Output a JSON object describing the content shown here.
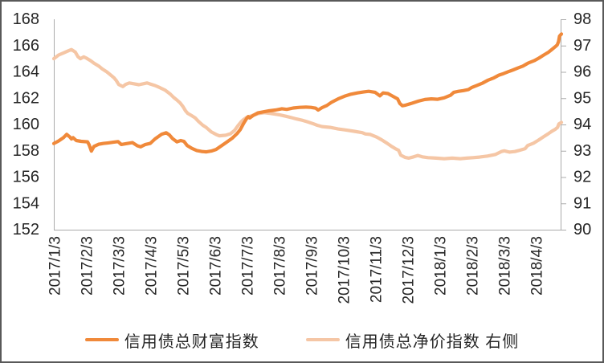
{
  "figure": {
    "background": "#ffffff",
    "border_color": "#595959",
    "axis_line_color": "#ABABAB",
    "tick_text_color": "#262626"
  },
  "legend": {
    "items": [
      {
        "label": "信用债总财富指数",
        "color": "#F0893A"
      },
      {
        "label": "信用债总净价指数 右侧",
        "color": "#F5C6A5"
      }
    ]
  },
  "chart_data": {
    "type": "line",
    "title": "",
    "xlabel": "",
    "ylabel_left": "",
    "ylabel_right": "",
    "grid": false,
    "legend_position": "bottom",
    "x_tick_labels": [
      "2017/1/3",
      "2017/2/3",
      "2017/3/3",
      "2017/4/3",
      "2017/5/3",
      "2017/6/3",
      "2017/7/3",
      "2017/8/3",
      "2017/9/3",
      "2017/10/3",
      "2017/11/3",
      "2017/12/3",
      "2018/1/3",
      "2018/2/3",
      "2018/3/3",
      "2018/4/3"
    ],
    "left_axis": {
      "min": 152,
      "max": 168,
      "step": 2,
      "ticks": [
        168,
        166,
        164,
        162,
        160,
        158,
        156,
        154,
        152
      ]
    },
    "right_axis": {
      "min": 90,
      "max": 98,
      "step": 1,
      "ticks": [
        98,
        97,
        96,
        95,
        94,
        93,
        92,
        91,
        90
      ]
    },
    "x_unit": "months since 2017/1/3 (tick index)",
    "series": [
      {
        "name": "信用债总财富指数",
        "axis": "left",
        "color": "#F0893A",
        "points": [
          [
            -0.05,
            158.55
          ],
          [
            0.1,
            158.75
          ],
          [
            0.25,
            159.0
          ],
          [
            0.35,
            159.25
          ],
          [
            0.45,
            159.05
          ],
          [
            0.5,
            158.9
          ],
          [
            0.55,
            159.0
          ],
          [
            0.65,
            158.78
          ],
          [
            0.8,
            158.72
          ],
          [
            1.0,
            158.68
          ],
          [
            1.05,
            158.45
          ],
          [
            1.12,
            157.98
          ],
          [
            1.2,
            158.33
          ],
          [
            1.35,
            158.5
          ],
          [
            1.5,
            158.56
          ],
          [
            1.65,
            158.6
          ],
          [
            1.8,
            158.65
          ],
          [
            1.95,
            158.7
          ],
          [
            2.05,
            158.48
          ],
          [
            2.25,
            158.56
          ],
          [
            2.4,
            158.62
          ],
          [
            2.55,
            158.38
          ],
          [
            2.65,
            158.3
          ],
          [
            2.8,
            158.48
          ],
          [
            2.95,
            158.56
          ],
          [
            3.1,
            158.9
          ],
          [
            3.3,
            159.25
          ],
          [
            3.45,
            159.37
          ],
          [
            3.55,
            159.2
          ],
          [
            3.65,
            158.92
          ],
          [
            3.78,
            158.68
          ],
          [
            3.9,
            158.78
          ],
          [
            4.0,
            158.72
          ],
          [
            4.1,
            158.4
          ],
          [
            4.25,
            158.18
          ],
          [
            4.4,
            158.02
          ],
          [
            4.55,
            157.95
          ],
          [
            4.7,
            157.92
          ],
          [
            4.85,
            157.98
          ],
          [
            5.0,
            158.1
          ],
          [
            5.15,
            158.35
          ],
          [
            5.3,
            158.6
          ],
          [
            5.5,
            158.95
          ],
          [
            5.65,
            159.3
          ],
          [
            5.75,
            159.6
          ],
          [
            5.85,
            160.05
          ],
          [
            5.95,
            160.45
          ],
          [
            6.0,
            160.6
          ],
          [
            6.05,
            160.5
          ],
          [
            6.15,
            160.68
          ],
          [
            6.3,
            160.88
          ],
          [
            6.5,
            160.97
          ],
          [
            6.65,
            161.04
          ],
          [
            6.85,
            161.1
          ],
          [
            7.05,
            161.2
          ],
          [
            7.2,
            161.15
          ],
          [
            7.4,
            161.25
          ],
          [
            7.6,
            161.3
          ],
          [
            7.8,
            161.32
          ],
          [
            7.95,
            161.3
          ],
          [
            8.1,
            161.24
          ],
          [
            8.18,
            161.1
          ],
          [
            8.3,
            161.28
          ],
          [
            8.45,
            161.45
          ],
          [
            8.6,
            161.7
          ],
          [
            8.8,
            161.95
          ],
          [
            9.0,
            162.15
          ],
          [
            9.2,
            162.3
          ],
          [
            9.4,
            162.4
          ],
          [
            9.6,
            162.48
          ],
          [
            9.75,
            162.52
          ],
          [
            9.95,
            162.45
          ],
          [
            10.1,
            162.18
          ],
          [
            10.2,
            162.4
          ],
          [
            10.35,
            162.35
          ],
          [
            10.5,
            162.15
          ],
          [
            10.65,
            161.95
          ],
          [
            10.72,
            161.6
          ],
          [
            10.8,
            161.42
          ],
          [
            10.9,
            161.47
          ],
          [
            11.1,
            161.62
          ],
          [
            11.3,
            161.78
          ],
          [
            11.5,
            161.9
          ],
          [
            11.7,
            161.95
          ],
          [
            11.9,
            161.92
          ],
          [
            12.1,
            162.03
          ],
          [
            12.3,
            162.22
          ],
          [
            12.4,
            162.45
          ],
          [
            12.55,
            162.52
          ],
          [
            12.7,
            162.58
          ],
          [
            12.85,
            162.65
          ],
          [
            12.95,
            162.8
          ],
          [
            13.1,
            162.95
          ],
          [
            13.3,
            163.15
          ],
          [
            13.45,
            163.35
          ],
          [
            13.65,
            163.55
          ],
          [
            13.8,
            163.75
          ],
          [
            13.95,
            163.87
          ],
          [
            14.1,
            164.02
          ],
          [
            14.25,
            164.15
          ],
          [
            14.4,
            164.3
          ],
          [
            14.55,
            164.44
          ],
          [
            14.65,
            164.58
          ],
          [
            14.72,
            164.68
          ],
          [
            14.9,
            164.85
          ],
          [
            15.05,
            165.05
          ],
          [
            15.2,
            165.28
          ],
          [
            15.35,
            165.5
          ],
          [
            15.45,
            165.7
          ],
          [
            15.55,
            165.9
          ],
          [
            15.62,
            166.05
          ],
          [
            15.66,
            166.3
          ],
          [
            15.69,
            166.72
          ],
          [
            15.75,
            166.88
          ]
        ]
      },
      {
        "name": "信用债总净价指数 右侧",
        "axis": "right",
        "color": "#F5C6A5",
        "points": [
          [
            -0.05,
            96.5
          ],
          [
            0.1,
            96.64
          ],
          [
            0.25,
            96.72
          ],
          [
            0.4,
            96.8
          ],
          [
            0.5,
            96.85
          ],
          [
            0.62,
            96.75
          ],
          [
            0.7,
            96.58
          ],
          [
            0.78,
            96.5
          ],
          [
            0.88,
            96.57
          ],
          [
            0.95,
            96.53
          ],
          [
            1.1,
            96.42
          ],
          [
            1.2,
            96.33
          ],
          [
            1.35,
            96.22
          ],
          [
            1.45,
            96.12
          ],
          [
            1.6,
            96.0
          ],
          [
            1.7,
            95.9
          ],
          [
            1.82,
            95.78
          ],
          [
            1.9,
            95.66
          ],
          [
            1.97,
            95.52
          ],
          [
            2.1,
            95.44
          ],
          [
            2.18,
            95.52
          ],
          [
            2.3,
            95.58
          ],
          [
            2.42,
            95.55
          ],
          [
            2.6,
            95.51
          ],
          [
            2.75,
            95.55
          ],
          [
            2.85,
            95.58
          ],
          [
            2.95,
            95.54
          ],
          [
            3.1,
            95.48
          ],
          [
            3.25,
            95.4
          ],
          [
            3.42,
            95.3
          ],
          [
            3.58,
            95.15
          ],
          [
            3.68,
            95.03
          ],
          [
            3.78,
            94.93
          ],
          [
            3.88,
            94.82
          ],
          [
            3.97,
            94.68
          ],
          [
            4.05,
            94.52
          ],
          [
            4.12,
            94.42
          ],
          [
            4.25,
            94.33
          ],
          [
            4.35,
            94.25
          ],
          [
            4.45,
            94.12
          ],
          [
            4.58,
            93.98
          ],
          [
            4.7,
            93.88
          ],
          [
            4.85,
            93.72
          ],
          [
            5.0,
            93.62
          ],
          [
            5.1,
            93.57
          ],
          [
            5.3,
            93.59
          ],
          [
            5.45,
            93.65
          ],
          [
            5.58,
            93.78
          ],
          [
            5.68,
            93.95
          ],
          [
            5.78,
            94.1
          ],
          [
            5.85,
            94.18
          ],
          [
            5.95,
            94.27
          ],
          [
            6.1,
            94.33
          ],
          [
            6.3,
            94.41
          ],
          [
            6.5,
            94.45
          ],
          [
            6.68,
            94.42
          ],
          [
            6.85,
            94.39
          ],
          [
            7.0,
            94.36
          ],
          [
            7.18,
            94.31
          ],
          [
            7.35,
            94.26
          ],
          [
            7.5,
            94.21
          ],
          [
            7.65,
            94.17
          ],
          [
            7.82,
            94.11
          ],
          [
            8.0,
            94.04
          ],
          [
            8.15,
            93.97
          ],
          [
            8.3,
            93.92
          ],
          [
            8.55,
            93.89
          ],
          [
            8.8,
            93.83
          ],
          [
            9.05,
            93.79
          ],
          [
            9.3,
            93.74
          ],
          [
            9.55,
            93.69
          ],
          [
            9.65,
            93.64
          ],
          [
            9.8,
            93.62
          ],
          [
            10.0,
            93.52
          ],
          [
            10.15,
            93.42
          ],
          [
            10.32,
            93.29
          ],
          [
            10.45,
            93.18
          ],
          [
            10.58,
            93.08
          ],
          [
            10.68,
            93.02
          ],
          [
            10.75,
            92.83
          ],
          [
            10.88,
            92.75
          ],
          [
            11.0,
            92.72
          ],
          [
            11.15,
            92.77
          ],
          [
            11.28,
            92.82
          ],
          [
            11.42,
            92.77
          ],
          [
            11.6,
            92.74
          ],
          [
            11.85,
            92.72
          ],
          [
            12.1,
            92.7
          ],
          [
            12.35,
            92.72
          ],
          [
            12.6,
            92.7
          ],
          [
            12.8,
            92.72
          ],
          [
            13.0,
            92.74
          ],
          [
            13.2,
            92.76
          ],
          [
            13.45,
            92.8
          ],
          [
            13.7,
            92.86
          ],
          [
            13.88,
            92.97
          ],
          [
            13.97,
            93.0
          ],
          [
            14.13,
            92.95
          ],
          [
            14.3,
            92.97
          ],
          [
            14.45,
            93.02
          ],
          [
            14.62,
            93.08
          ],
          [
            14.7,
            93.2
          ],
          [
            14.88,
            93.29
          ],
          [
            15.03,
            93.4
          ],
          [
            15.2,
            93.54
          ],
          [
            15.33,
            93.64
          ],
          [
            15.45,
            93.74
          ],
          [
            15.55,
            93.81
          ],
          [
            15.63,
            93.89
          ],
          [
            15.67,
            94.02
          ],
          [
            15.75,
            94.08
          ]
        ]
      }
    ]
  }
}
